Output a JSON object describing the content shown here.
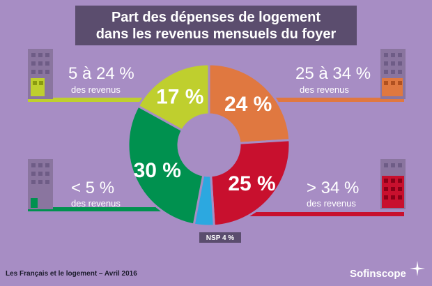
{
  "header": {
    "title_line1": "Part des dépenses de logement",
    "title_line2": "dans les revenus mensuels du foyer"
  },
  "chart_data": {
    "type": "pie",
    "title": "Part des dépenses de logement dans les revenus mensuels du foyer",
    "slices": [
      {
        "label": "25 à 34 %",
        "value": 24,
        "display": "24 %",
        "color": "#e07840"
      },
      {
        "label": "> 34 %",
        "value": 25,
        "display": "25 %",
        "color": "#c8102e"
      },
      {
        "label": "NSP",
        "value": 4,
        "display": "NSP 4 %",
        "color": "#2ca8e0"
      },
      {
        "label": "< 5 %",
        "value": 30,
        "display": "30 %",
        "color": "#00914f"
      },
      {
        "label": "5 à 24 %",
        "value": 17,
        "display": "17 %",
        "color": "#bfcf2e"
      }
    ]
  },
  "categories": {
    "top_left": {
      "range": "5 à 24 %",
      "sub": "des revenus",
      "color": "#bfcf2e"
    },
    "top_right": {
      "range": "25 à 34 %",
      "sub": "des revenus",
      "color": "#e07840"
    },
    "bottom_left": {
      "range": "<  5 %",
      "sub": "des revenus",
      "color": "#00914f"
    },
    "bottom_right": {
      "range": "> 34 %",
      "sub": "des revenus",
      "color": "#c8102e"
    }
  },
  "footer": {
    "source": "Les Français et le logement – Avril 2016",
    "brand": "Sofinscope"
  }
}
